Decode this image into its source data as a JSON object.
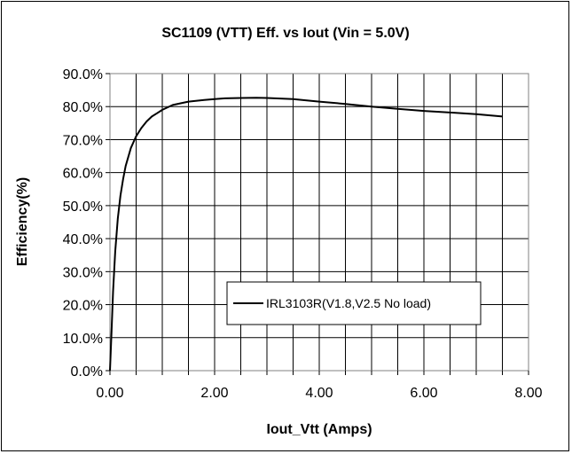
{
  "chart_data": {
    "type": "line",
    "title": "SC1109 (VTT) Eff. vs Iout (Vin = 5.0V)",
    "xlabel": "Iout_Vtt (Amps)",
    "ylabel": "Efficiency(%)",
    "xlim": [
      0,
      8
    ],
    "ylim": [
      0,
      90
    ],
    "x_ticks": [
      0,
      2,
      4,
      6,
      8
    ],
    "x_tick_labels": [
      "0.00",
      "2.00",
      "4.00",
      "6.00",
      "8.00"
    ],
    "y_ticks": [
      0,
      10,
      20,
      30,
      40,
      50,
      60,
      70,
      80,
      90
    ],
    "y_tick_labels": [
      "0.0%",
      "10.0%",
      "20.0%",
      "30.0%",
      "40.0%",
      "50.0%",
      "60.0%",
      "70.0%",
      "80.0%",
      "90.0%"
    ],
    "grid": true,
    "legend_position": "lower-right",
    "series": [
      {
        "name": "IRL3103R(V1.8,V2.5 No load)",
        "color": "#000000",
        "x": [
          0.0,
          0.03,
          0.06,
          0.1,
          0.15,
          0.2,
          0.25,
          0.3,
          0.4,
          0.5,
          0.6,
          0.7,
          0.8,
          0.9,
          1.0,
          1.2,
          1.5,
          1.8,
          2.0,
          2.2,
          2.5,
          2.8,
          3.0,
          3.5,
          4.0,
          4.5,
          5.0,
          5.5,
          6.0,
          6.5,
          7.0,
          7.5
        ],
        "y": [
          0.0,
          12.0,
          24.0,
          36.0,
          46.0,
          53.0,
          58.0,
          62.0,
          67.5,
          71.0,
          73.5,
          75.5,
          77.0,
          78.0,
          79.0,
          80.5,
          81.5,
          82.0,
          82.3,
          82.5,
          82.6,
          82.7,
          82.6,
          82.3,
          81.5,
          80.8,
          80.0,
          79.3,
          78.7,
          78.2,
          77.7,
          77.0
        ]
      }
    ]
  }
}
